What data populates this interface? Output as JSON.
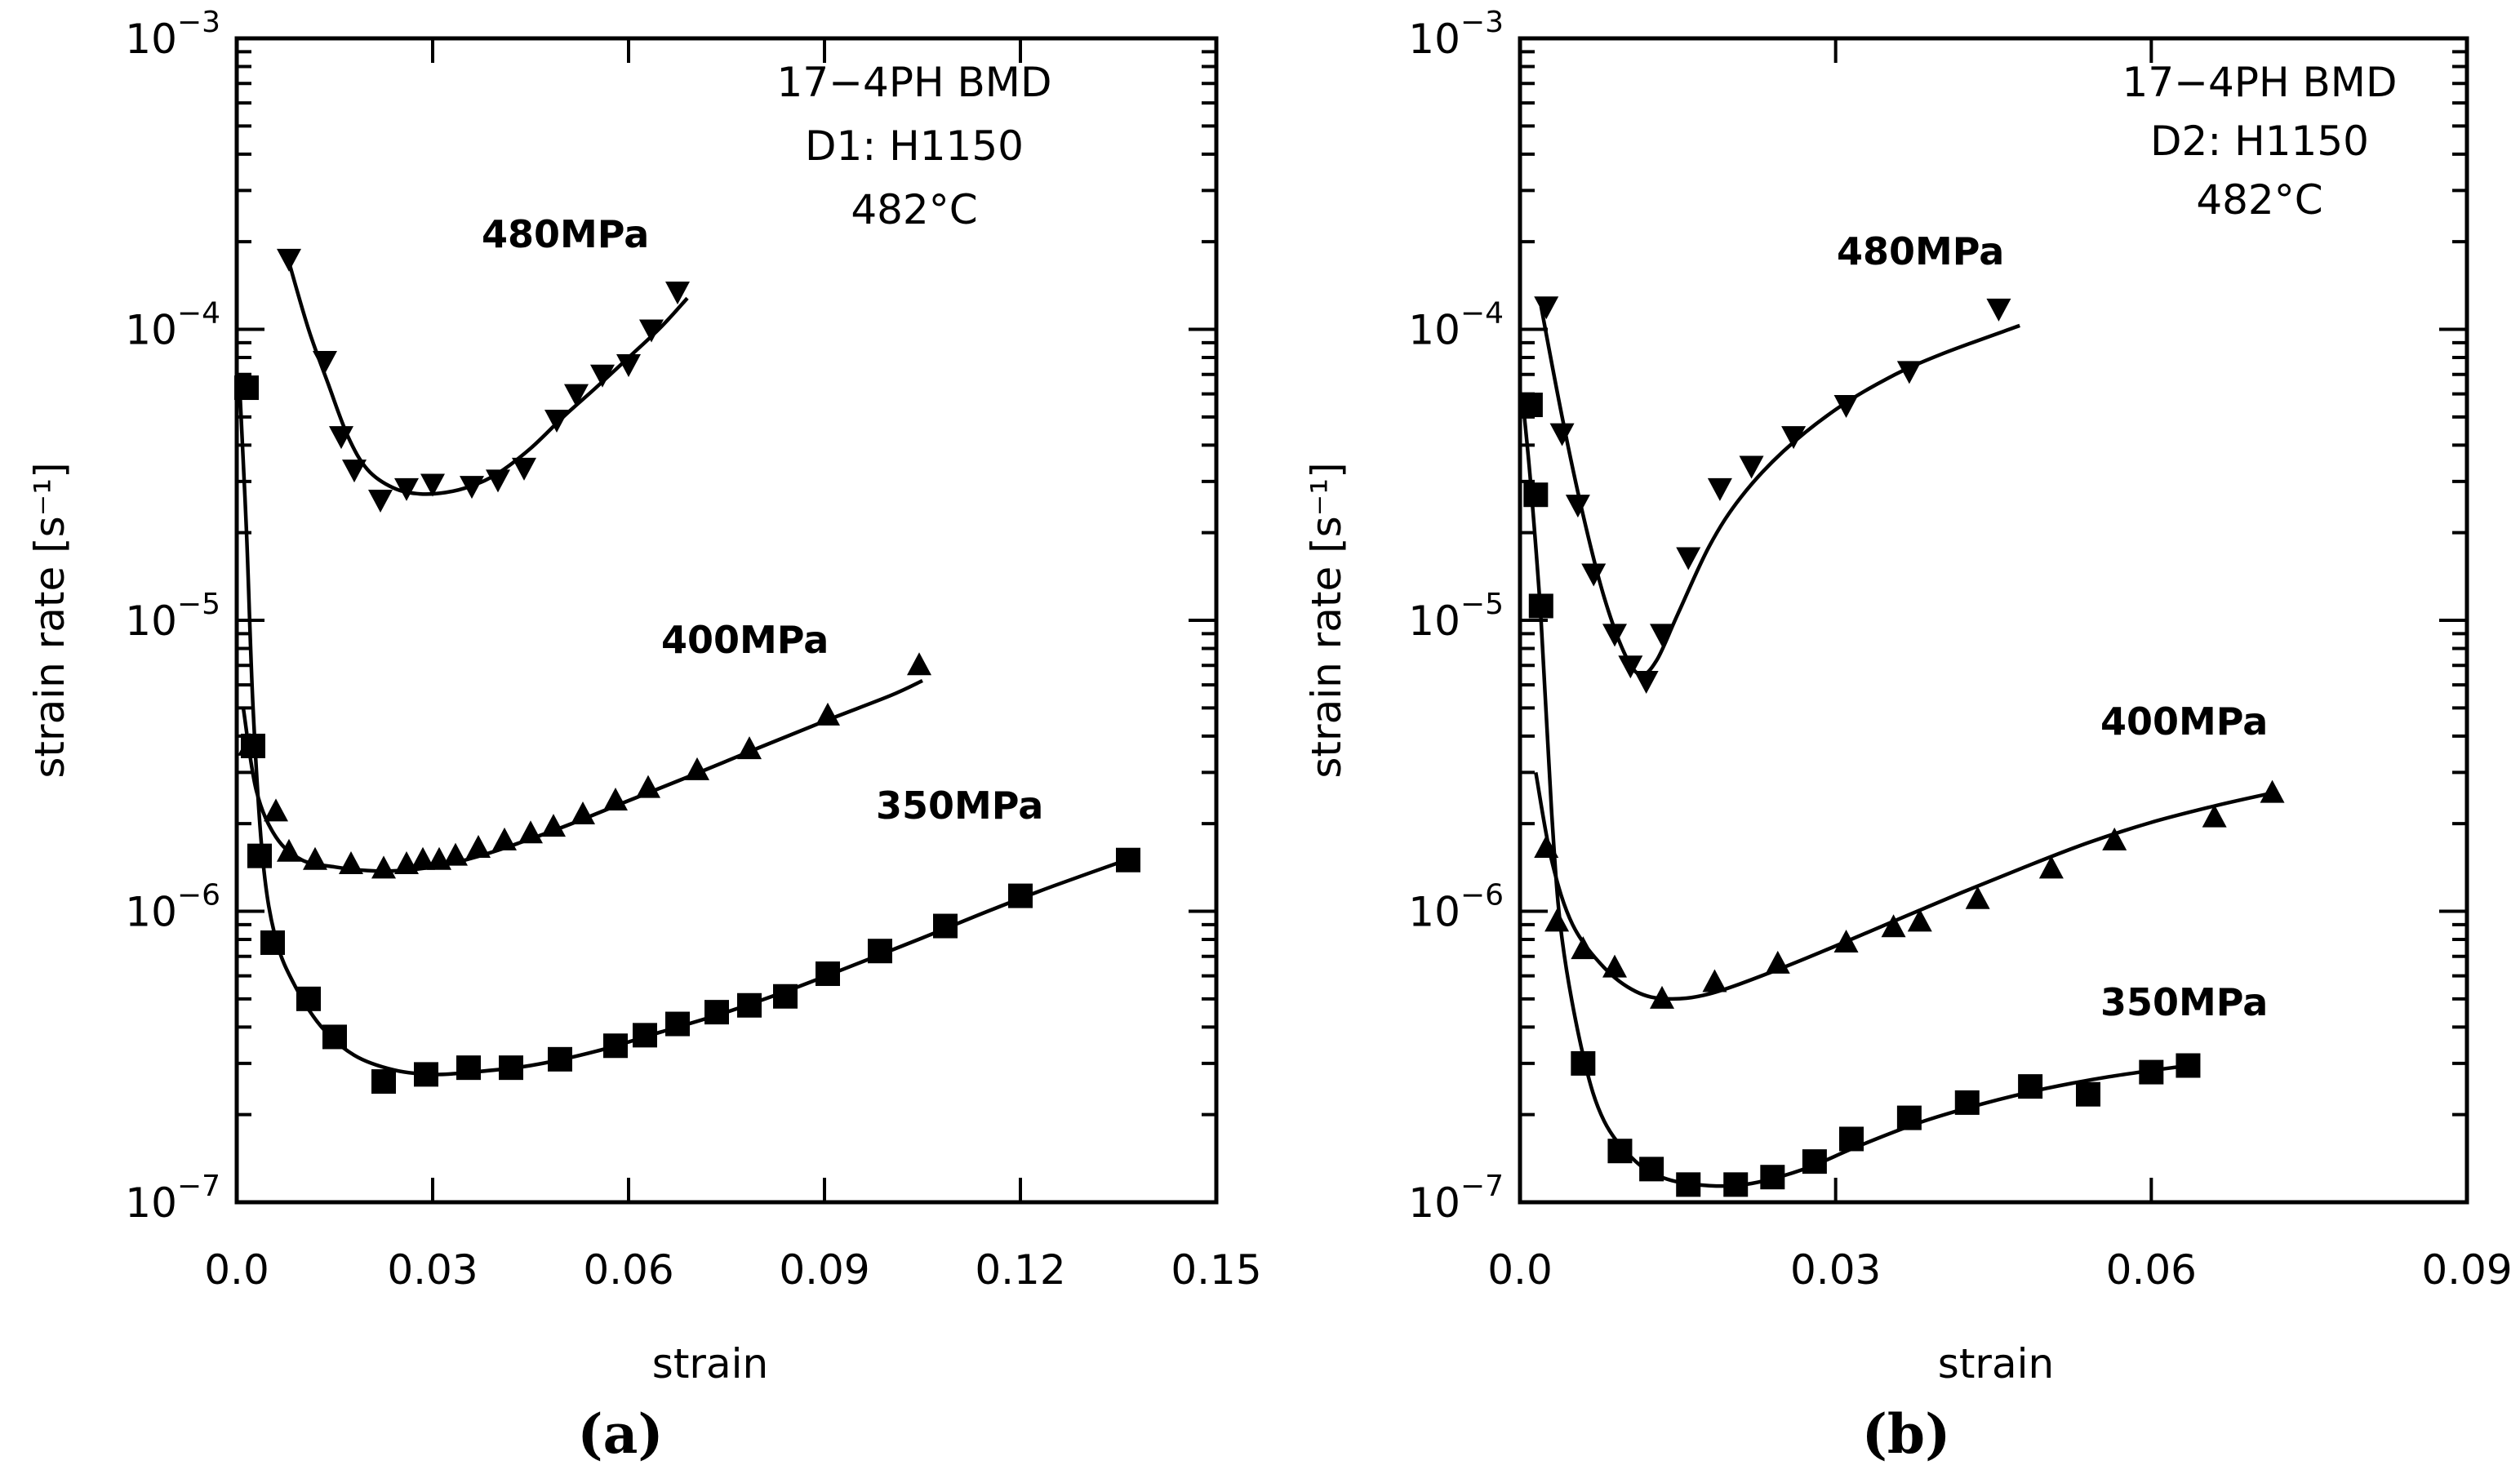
{
  "chart_data": [
    {
      "type": "scatter",
      "panel_label": "(a)",
      "xlabel": "strain",
      "ylabel": "strain rate [s⁻¹]",
      "xlim": [
        0,
        0.15
      ],
      "ylim": [
        1e-07,
        0.001
      ],
      "yscale": "log",
      "x_ticks": [
        "0.0",
        "0.03",
        "0.06",
        "0.09",
        "0.12",
        "0.15"
      ],
      "x_tick_values": [
        0,
        0.03,
        0.06,
        0.09,
        0.12,
        0.15
      ],
      "y_ticks": [
        {
          "base": "10",
          "exp": "−7",
          "value": 1e-07
        },
        {
          "base": "10",
          "exp": "−6",
          "value": 1e-06
        },
        {
          "base": "10",
          "exp": "−5",
          "value": 1e-05
        },
        {
          "base": "10",
          "exp": "−4",
          "value": 0.0001
        },
        {
          "base": "10",
          "exp": "−3",
          "value": 0.001
        }
      ],
      "annotations": [
        "17−4PH BMD",
        "D1: H1150",
        "482°C"
      ],
      "series": [
        {
          "name": "480MPa",
          "marker": "triangle-down",
          "points": [
            [
              0.008,
              0.000175
            ],
            [
              0.0135,
              7.8e-05
            ],
            [
              0.016,
              4.3e-05
            ],
            [
              0.018,
              3.3e-05
            ],
            [
              0.022,
              2.6e-05
            ],
            [
              0.026,
              2.85e-05
            ],
            [
              0.03,
              2.95e-05
            ],
            [
              0.036,
              2.9e-05
            ],
            [
              0.04,
              3.05e-05
            ],
            [
              0.044,
              3.35e-05
            ],
            [
              0.049,
              4.9e-05
            ],
            [
              0.052,
              6e-05
            ],
            [
              0.056,
              7e-05
            ],
            [
              0.06,
              7.6e-05
            ],
            [
              0.0635,
              0.0001
            ],
            [
              0.0675,
              0.000135
            ]
          ],
          "curve": [
            [
              0.008,
              0.00017
            ],
            [
              0.011,
              0.0001
            ],
            [
              0.014,
              6.5e-05
            ],
            [
              0.017,
              4.3e-05
            ],
            [
              0.02,
              3.3e-05
            ],
            [
              0.024,
              2.85e-05
            ],
            [
              0.028,
              2.72e-05
            ],
            [
              0.032,
              2.75e-05
            ],
            [
              0.036,
              2.9e-05
            ],
            [
              0.04,
              3.2e-05
            ],
            [
              0.045,
              3.9e-05
            ],
            [
              0.05,
              5e-05
            ],
            [
              0.055,
              6.3e-05
            ],
            [
              0.06,
              8e-05
            ],
            [
              0.065,
              0.000102
            ],
            [
              0.069,
              0.000128
            ]
          ]
        },
        {
          "name": "400MPa",
          "marker": "triangle-up",
          "points": [
            [
              0.002,
              3.7e-06
            ],
            [
              0.006,
              2.2e-06
            ],
            [
              0.008,
              1.6e-06
            ],
            [
              0.012,
              1.5e-06
            ],
            [
              0.0175,
              1.45e-06
            ],
            [
              0.0225,
              1.4e-06
            ],
            [
              0.026,
              1.45e-06
            ],
            [
              0.0285,
              1.5e-06
            ],
            [
              0.031,
              1.5e-06
            ],
            [
              0.0335,
              1.55e-06
            ],
            [
              0.037,
              1.65e-06
            ],
            [
              0.041,
              1.75e-06
            ],
            [
              0.045,
              1.85e-06
            ],
            [
              0.0485,
              1.95e-06
            ],
            [
              0.053,
              2.15e-06
            ],
            [
              0.058,
              2.4e-06
            ],
            [
              0.063,
              2.65e-06
            ],
            [
              0.0705,
              3.05e-06
            ],
            [
              0.0785,
              3.6e-06
            ],
            [
              0.0905,
              4.7e-06
            ],
            [
              0.1045,
              7e-06
            ]
          ],
          "curve": [
            [
              0.001,
              5e-06
            ],
            [
              0.003,
              2.6e-06
            ],
            [
              0.006,
              1.8e-06
            ],
            [
              0.01,
              1.5e-06
            ],
            [
              0.015,
              1.42e-06
            ],
            [
              0.02,
              1.38e-06
            ],
            [
              0.025,
              1.38e-06
            ],
            [
              0.03,
              1.42e-06
            ],
            [
              0.035,
              1.5e-06
            ],
            [
              0.04,
              1.62e-06
            ],
            [
              0.05,
              1.95e-06
            ],
            [
              0.06,
              2.4e-06
            ],
            [
              0.07,
              2.95e-06
            ],
            [
              0.08,
              3.65e-06
            ],
            [
              0.09,
              4.5e-06
            ],
            [
              0.1,
              5.5e-06
            ],
            [
              0.105,
              6.2e-06
            ]
          ]
        },
        {
          "name": "350MPa",
          "marker": "square",
          "points": [
            [
              0.0015,
              6.3e-05
            ],
            [
              0.0025,
              3.7e-06
            ],
            [
              0.0035,
              1.55e-06
            ],
            [
              0.0055,
              7.8e-07
            ],
            [
              0.011,
              5e-07
            ],
            [
              0.015,
              3.7e-07
            ],
            [
              0.0225,
              2.6e-07
            ],
            [
              0.029,
              2.75e-07
            ],
            [
              0.0355,
              2.9e-07
            ],
            [
              0.042,
              2.9e-07
            ],
            [
              0.0495,
              3.1e-07
            ],
            [
              0.058,
              3.45e-07
            ],
            [
              0.0625,
              3.75e-07
            ],
            [
              0.0675,
              4.1e-07
            ],
            [
              0.0735,
              4.5e-07
            ],
            [
              0.0785,
              4.75e-07
            ],
            [
              0.084,
              5.1e-07
            ],
            [
              0.0905,
              6.1e-07
            ],
            [
              0.0985,
              7.3e-07
            ],
            [
              0.1085,
              8.9e-07
            ],
            [
              0.12,
              1.13e-06
            ],
            [
              0.1365,
              1.5e-06
            ]
          ],
          "curve": [
            [
              0.0005,
              6e-05
            ],
            [
              0.0015,
              2e-05
            ],
            [
              0.0025,
              5e-06
            ],
            [
              0.004,
              1.5e-06
            ],
            [
              0.006,
              8e-07
            ],
            [
              0.009,
              5.5e-07
            ],
            [
              0.013,
              4e-07
            ],
            [
              0.018,
              3.2e-07
            ],
            [
              0.024,
              2.85e-07
            ],
            [
              0.03,
              2.75e-07
            ],
            [
              0.036,
              2.8e-07
            ],
            [
              0.045,
              2.95e-07
            ],
            [
              0.055,
              3.3e-07
            ],
            [
              0.065,
              3.85e-07
            ],
            [
              0.075,
              4.5e-07
            ],
            [
              0.085,
              5.4e-07
            ],
            [
              0.095,
              6.6e-07
            ],
            [
              0.105,
              8.1e-07
            ],
            [
              0.115,
              1e-06
            ],
            [
              0.125,
              1.22e-06
            ],
            [
              0.138,
              1.55e-06
            ]
          ]
        }
      ]
    },
    {
      "type": "scatter",
      "panel_label": "(b)",
      "xlabel": "strain",
      "ylabel": "strain rate [s⁻¹]",
      "xlim": [
        0,
        0.09
      ],
      "ylim": [
        1e-07,
        0.001
      ],
      "yscale": "log",
      "x_ticks": [
        "0.0",
        "0.03",
        "0.06",
        "0.09"
      ],
      "x_tick_values": [
        0,
        0.03,
        0.06,
        0.09
      ],
      "y_ticks": [
        {
          "base": "10",
          "exp": "−7",
          "value": 1e-07
        },
        {
          "base": "10",
          "exp": "−6",
          "value": 1e-06
        },
        {
          "base": "10",
          "exp": "−5",
          "value": 1e-05
        },
        {
          "base": "10",
          "exp": "−4",
          "value": 0.0001
        },
        {
          "base": "10",
          "exp": "−3",
          "value": 0.001
        }
      ],
      "annotations": [
        "17−4PH BMD",
        "D2: H1150",
        "482°C"
      ],
      "series": [
        {
          "name": "480MPa",
          "marker": "triangle-down",
          "points": [
            [
              0.0025,
              0.00012
            ],
            [
              0.004,
              4.4e-05
            ],
            [
              0.0055,
              2.5e-05
            ],
            [
              0.007,
              1.45e-05
            ],
            [
              0.009,
              9e-06
            ],
            [
              0.0105,
              7e-06
            ],
            [
              0.012,
              6.2e-06
            ],
            [
              0.0135,
              9e-06
            ],
            [
              0.016,
              1.65e-05
            ],
            [
              0.019,
              2.85e-05
            ],
            [
              0.022,
              3.4e-05
            ],
            [
              0.026,
              4.3e-05
            ],
            [
              0.031,
              5.5e-05
            ],
            [
              0.037,
              7.2e-05
            ],
            [
              0.0455,
              0.000118
            ]
          ],
          "curve": [
            [
              0.002,
              0.00012
            ],
            [
              0.004,
              5e-05
            ],
            [
              0.006,
              2.3e-05
            ],
            [
              0.008,
              1.2e-05
            ],
            [
              0.01,
              7.6e-06
            ],
            [
              0.0115,
              6.5e-06
            ],
            [
              0.013,
              7.3e-06
            ],
            [
              0.015,
              1.05e-05
            ],
            [
              0.018,
              1.8e-05
            ],
            [
              0.021,
              2.65e-05
            ],
            [
              0.025,
              3.8e-05
            ],
            [
              0.03,
              5.3e-05
            ],
            [
              0.035,
              6.8e-05
            ],
            [
              0.04,
              8.2e-05
            ],
            [
              0.0475,
              0.000103
            ]
          ]
        },
        {
          "name": "400MPa",
          "marker": "triangle-up",
          "points": [
            [
              0.0025,
              1.65e-06
            ],
            [
              0.0035,
              9.2e-07
            ],
            [
              0.006,
              7.4e-07
            ],
            [
              0.009,
              6.4e-07
            ],
            [
              0.0135,
              5e-07
            ],
            [
              0.0185,
              5.7e-07
            ],
            [
              0.0245,
              6.6e-07
            ],
            [
              0.031,
              7.8e-07
            ],
            [
              0.0355,
              8.8e-07
            ],
            [
              0.038,
              9.2e-07
            ],
            [
              0.0435,
              1.1e-06
            ],
            [
              0.0505,
              1.4e-06
            ],
            [
              0.0565,
              1.75e-06
            ],
            [
              0.066,
              2.1e-06
            ],
            [
              0.0715,
              2.55e-06
            ]
          ],
          "curve": [
            [
              0.0015,
              3e-06
            ],
            [
              0.003,
              1.5e-06
            ],
            [
              0.005,
              9e-07
            ],
            [
              0.008,
              6.4e-07
            ],
            [
              0.011,
              5.3e-07
            ],
            [
              0.014,
              5e-07
            ],
            [
              0.018,
              5.2e-07
            ],
            [
              0.024,
              6.2e-07
            ],
            [
              0.03,
              7.6e-07
            ],
            [
              0.036,
              9.4e-07
            ],
            [
              0.042,
              1.16e-06
            ],
            [
              0.048,
              1.42e-06
            ],
            [
              0.054,
              1.72e-06
            ],
            [
              0.06,
              2.02e-06
            ],
            [
              0.066,
              2.3e-06
            ],
            [
              0.0715,
              2.55e-06
            ]
          ]
        },
        {
          "name": "350MPa",
          "marker": "square",
          "points": [
            [
              0.001,
              5.5e-05
            ],
            [
              0.0015,
              2.7e-05
            ],
            [
              0.002,
              1.12e-05
            ],
            [
              0.006,
              3e-07
            ],
            [
              0.0095,
              1.5e-07
            ],
            [
              0.0125,
              1.3e-07
            ],
            [
              0.016,
              1.15e-07
            ],
            [
              0.0205,
              1.15e-07
            ],
            [
              0.024,
              1.22e-07
            ],
            [
              0.028,
              1.38e-07
            ],
            [
              0.0315,
              1.65e-07
            ],
            [
              0.037,
              1.95e-07
            ],
            [
              0.0425,
              2.2e-07
            ],
            [
              0.0485,
              2.5e-07
            ],
            [
              0.054,
              2.35e-07
            ],
            [
              0.06,
              2.8e-07
            ],
            [
              0.0635,
              2.95e-07
            ]
          ],
          "curve": [
            [
              0.0003,
              5.5e-05
            ],
            [
              0.001,
              3e-05
            ],
            [
              0.002,
              1e-05
            ],
            [
              0.003,
              2.2e-06
            ],
            [
              0.004,
              8e-07
            ],
            [
              0.006,
              3.2e-07
            ],
            [
              0.008,
              1.9e-07
            ],
            [
              0.011,
              1.38e-07
            ],
            [
              0.014,
              1.2e-07
            ],
            [
              0.018,
              1.14e-07
            ],
            [
              0.022,
              1.16e-07
            ],
            [
              0.027,
              1.3e-07
            ],
            [
              0.032,
              1.55e-07
            ],
            [
              0.038,
              1.88e-07
            ],
            [
              0.044,
              2.18e-07
            ],
            [
              0.05,
              2.46e-07
            ],
            [
              0.056,
              2.7e-07
            ],
            [
              0.0635,
              2.95e-07
            ]
          ]
        }
      ]
    }
  ]
}
